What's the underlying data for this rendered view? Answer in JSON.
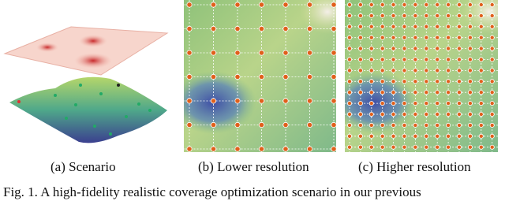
{
  "captions": {
    "a": "(a) Scenario",
    "b": "(b) Lower resolution",
    "c": "(c) Higher resolution"
  },
  "figure_caption": "Fig. 1.  A high-fidelity realistic coverage optimization scenario in our previous"
}
